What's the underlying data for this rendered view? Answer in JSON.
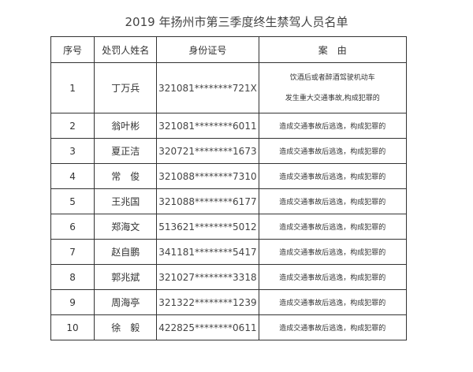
{
  "title": "2019 年扬州市第三季度终生禁驾人员名单",
  "table": {
    "headers": [
      "序号",
      "处罚人姓名",
      "身份证号",
      "案　由"
    ],
    "first_row": {
      "no": "1",
      "name": "丁万兵",
      "id": "321081********721X",
      "reason_lines": [
        "饮酒后或者醉酒驾驶机动车",
        "发生重大交通事故,构成犯罪的"
      ]
    },
    "rows": [
      {
        "no": "2",
        "name": "翁叶彬",
        "id": "321081********6011",
        "reason": "造成交通事故后逃逸，构成犯罪的"
      },
      {
        "no": "3",
        "name": "夏正洁",
        "id": "320721********1673",
        "reason": "造成交通事故后逃逸，构成犯罪的"
      },
      {
        "no": "4",
        "name": "常　俊",
        "id": "321088********7310",
        "reason": "造成交通事故后逃逸，构成犯罪的"
      },
      {
        "no": "5",
        "name": "王兆国",
        "id": "321088********6177",
        "reason": "造成交通事故后逃逸，构成犯罪的"
      },
      {
        "no": "6",
        "name": "郑海文",
        "id": "513621********5012",
        "reason": "造成交通事故后逃逸，构成犯罪的"
      },
      {
        "no": "7",
        "name": "赵自鹏",
        "id": "341181********5417",
        "reason": "造成交通事故后逃逸，构成犯罪的"
      },
      {
        "no": "8",
        "name": "郭兆斌",
        "id": "321027********3318",
        "reason": "造成交通事故后逃逸，构成犯罪的"
      },
      {
        "no": "9",
        "name": "周海亭",
        "id": "321322********1239",
        "reason": "造成交通事故后逃逸，构成犯罪的"
      },
      {
        "no": "10",
        "name": "徐　毅",
        "id": "422825********0611",
        "reason": "造成交通事故后逃逸，构成犯罪的"
      }
    ]
  }
}
